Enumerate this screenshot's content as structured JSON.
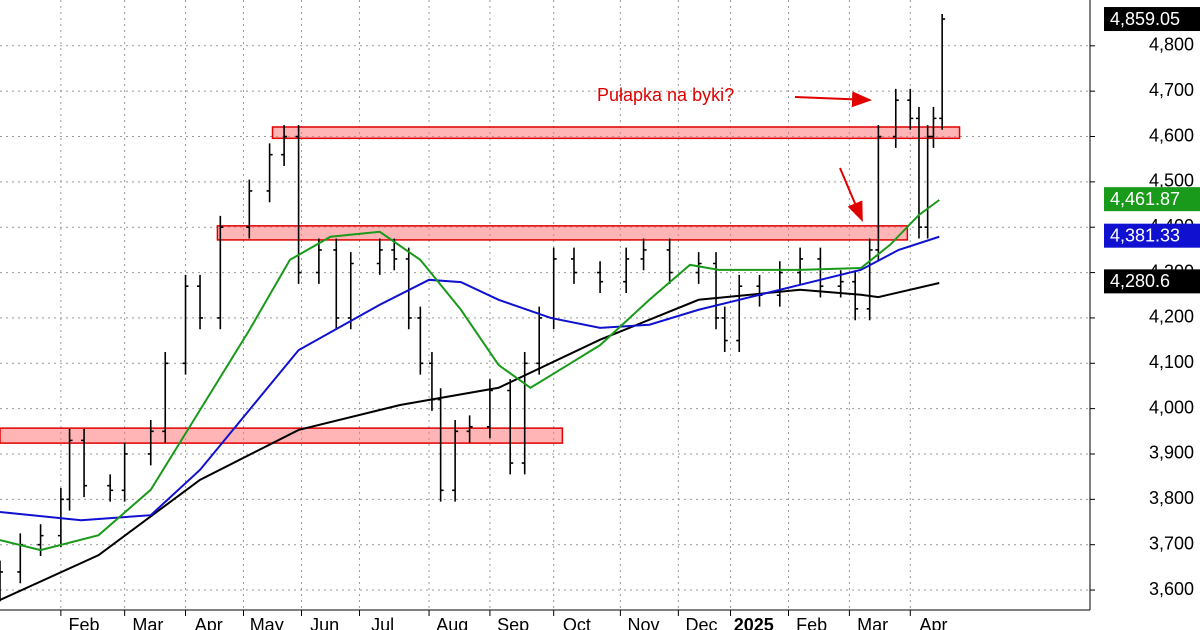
{
  "chart_data": {
    "type": "ohlc",
    "annotation": "Pułapka na byki?",
    "xlim": [
      0,
      376
    ],
    "xticks": [
      {
        "value": 21,
        "label": "Feb"
      },
      {
        "value": 43,
        "label": "Mar"
      },
      {
        "value": 64,
        "label": "Apr"
      },
      {
        "value": 84,
        "label": "May"
      },
      {
        "value": 104,
        "label": "Jun"
      },
      {
        "value": 124,
        "label": "Jul"
      },
      {
        "value": 148,
        "label": "Aug"
      },
      {
        "value": 169,
        "label": "Sep"
      },
      {
        "value": 191,
        "label": "Oct"
      },
      {
        "value": 214,
        "label": "Nov"
      },
      {
        "value": 234,
        "label": "Dec"
      },
      {
        "value": 252,
        "label": "2025"
      },
      {
        "value": 272,
        "label": "Feb"
      },
      {
        "value": 293,
        "label": "Mar"
      },
      {
        "value": 314,
        "label": "Apr"
      }
    ],
    "ylim": [
      3556,
      4901
    ],
    "yticks": [
      {
        "value": 3600,
        "label": "3,600"
      },
      {
        "value": 3700,
        "label": "3,700"
      },
      {
        "value": 3800,
        "label": "3,800"
      },
      {
        "value": 3900,
        "label": "3,900"
      },
      {
        "value": 4000,
        "label": "4,000"
      },
      {
        "value": 4100,
        "label": "4,100"
      },
      {
        "value": 4200,
        "label": "4,200"
      },
      {
        "value": 4300,
        "label": "4,300"
      },
      {
        "value": 4400,
        "label": "4,400"
      },
      {
        "value": 4500,
        "label": "4,500"
      },
      {
        "value": 4600,
        "label": "4,600"
      },
      {
        "value": 4700,
        "label": "4,700"
      },
      {
        "value": 4800,
        "label": "4,800"
      }
    ],
    "grid": true,
    "bar_color": "#000000",
    "x": [
      0,
      7,
      14,
      21,
      24,
      29,
      38,
      43,
      52,
      57,
      64,
      69,
      76,
      86,
      93,
      98,
      103,
      110,
      116,
      121,
      131,
      136,
      141,
      145,
      149,
      152,
      157,
      162,
      169,
      176,
      181,
      186,
      191,
      198,
      207,
      216,
      222,
      231,
      241,
      247,
      250,
      255,
      262,
      269,
      276,
      283,
      290,
      295,
      300,
      303,
      309,
      314,
      317,
      320,
      322,
      325
    ],
    "open": [
      3600,
      3640,
      3700,
      3720,
      3800,
      3930,
      3830,
      3820,
      3900,
      3950,
      4100,
      4270,
      4200,
      4400,
      4480,
      4560,
      4600,
      4300,
      4350,
      4200,
      4320,
      4350,
      4330,
      4200,
      4100,
      4020,
      3820,
      3950,
      3960,
      4040,
      3880,
      4100,
      4200,
      4330,
      4300,
      4280,
      4330,
      4350,
      4300,
      4320,
      4200,
      4150,
      4270,
      4250,
      4300,
      4330,
      4270,
      4280,
      4220,
      4350,
      4600,
      4680,
      4640,
      4400,
      4600,
      4640
    ],
    "high": [
      3665,
      3725,
      3745,
      3825,
      3955,
      3955,
      3855,
      3925,
      3975,
      4125,
      4295,
      4295,
      4425,
      4505,
      4585,
      4625,
      4625,
      4375,
      4375,
      4345,
      4375,
      4375,
      4355,
      4225,
      4125,
      4045,
      3975,
      3985,
      4065,
      4065,
      4125,
      4225,
      4355,
      4355,
      4325,
      4355,
      4375,
      4375,
      4345,
      4345,
      4225,
      4295,
      4295,
      4325,
      4355,
      4355,
      4305,
      4305,
      4375,
      4625,
      4705,
      4705,
      4665,
      4625,
      4665,
      4870
    ],
    "low": [
      3575,
      3615,
      3675,
      3695,
      3775,
      3805,
      3795,
      3795,
      3875,
      3925,
      4075,
      4175,
      4175,
      4375,
      4455,
      4535,
      4275,
      4275,
      4175,
      4175,
      4295,
      4305,
      4175,
      4075,
      3995,
      3795,
      3795,
      3925,
      3935,
      3855,
      3855,
      4075,
      4175,
      4275,
      4255,
      4255,
      4305,
      4275,
      4275,
      4175,
      4125,
      4125,
      4225,
      4225,
      4275,
      4245,
      4245,
      4195,
      4195,
      4325,
      4575,
      4615,
      4375,
      4375,
      4575,
      4615
    ],
    "close": [
      3640,
      3700,
      3720,
      3800,
      3930,
      3830,
      3820,
      3900,
      3950,
      4100,
      4270,
      4200,
      4400,
      4480,
      4560,
      4600,
      4300,
      4350,
      4200,
      4320,
      4350,
      4330,
      4200,
      4100,
      4020,
      3820,
      3950,
      3960,
      4040,
      3880,
      4100,
      4200,
      4330,
      4300,
      4280,
      4330,
      4350,
      4300,
      4320,
      4200,
      4150,
      4270,
      4250,
      4300,
      4330,
      4270,
      4280,
      4220,
      4350,
      4600,
      4680,
      4640,
      4400,
      4600,
      4640,
      4859
    ],
    "lines": [
      {
        "color": "#000000",
        "x": [
          0,
          34,
          69,
          103,
          138,
          172,
          207,
          241,
          276,
          297,
          303,
          324
        ],
        "values": [
          3578,
          3677,
          3843,
          3953,
          4008,
          4046,
          4152,
          4240,
          4262,
          4251,
          4246,
          4277
        ]
      },
      {
        "color": "#1010d0",
        "x": [
          0,
          28,
          52,
          69,
          86,
          103,
          131,
          148,
          159,
          172,
          190,
          207,
          224,
          241,
          255,
          276,
          297,
          310,
          324
        ],
        "values": [
          3772,
          3754,
          3765,
          3865,
          3997,
          4129,
          4229,
          4284,
          4279,
          4240,
          4200,
          4178,
          4185,
          4218,
          4240,
          4273,
          4306,
          4350,
          4379
        ]
      },
      {
        "color": "#1a9a1a",
        "x": [
          0,
          14,
          34,
          52,
          69,
          86,
          100,
          114,
          131,
          145,
          159,
          172,
          183,
          193,
          207,
          224,
          238,
          248,
          262,
          276,
          297,
          307,
          317,
          324
        ],
        "values": [
          3710,
          3688,
          3721,
          3821,
          3997,
          4173,
          4328,
          4379,
          4390,
          4328,
          4218,
          4096,
          4046,
          4085,
          4140,
          4240,
          4317,
          4306,
          4306,
          4306,
          4310,
          4361,
          4427,
          4460
        ]
      }
    ],
    "zones": [
      {
        "x": [
          94,
          331
        ],
        "y": [
          4596,
          4621
        ]
      },
      {
        "x": [
          75,
          313
        ],
        "y": [
          4372,
          4403
        ]
      },
      {
        "x": [
          0,
          194
        ],
        "y": [
          3924,
          3957
        ]
      }
    ],
    "last_labels": [
      {
        "value": 4859.05,
        "label": "4,859.05",
        "color": "#000000"
      },
      {
        "value": 4461.87,
        "label": "4,461.87",
        "color": "#1a9a1a"
      },
      {
        "value": 4381.33,
        "label": "4,381.33",
        "color": "#1010d0"
      },
      {
        "value": 4280.6,
        "label": "4,280.6",
        "color": "#000000"
      }
    ]
  }
}
